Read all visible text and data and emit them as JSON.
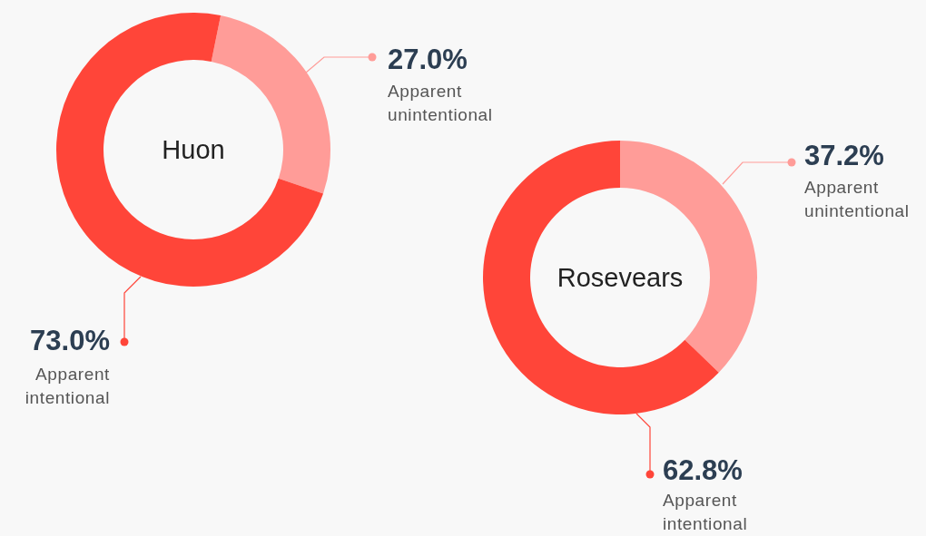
{
  "chart_data": [
    {
      "type": "donut",
      "title": "Huon",
      "categories": [
        "Apparent unintentional",
        "Apparent intentional"
      ],
      "values": [
        27.0,
        73.0
      ],
      "colors": [
        "#ff9c98",
        "#ff4539"
      ],
      "value_labels": [
        "27.0%",
        "73.0%"
      ],
      "legend": "right"
    },
    {
      "type": "donut",
      "title": "Rosevears",
      "categories": [
        "Apparent unintentional",
        "Apparent intentional"
      ],
      "values": [
        37.2,
        62.8
      ],
      "colors": [
        "#ff9c98",
        "#ff4539"
      ],
      "value_labels": [
        "37.2%",
        "62.8%"
      ],
      "legend": "right"
    }
  ]
}
